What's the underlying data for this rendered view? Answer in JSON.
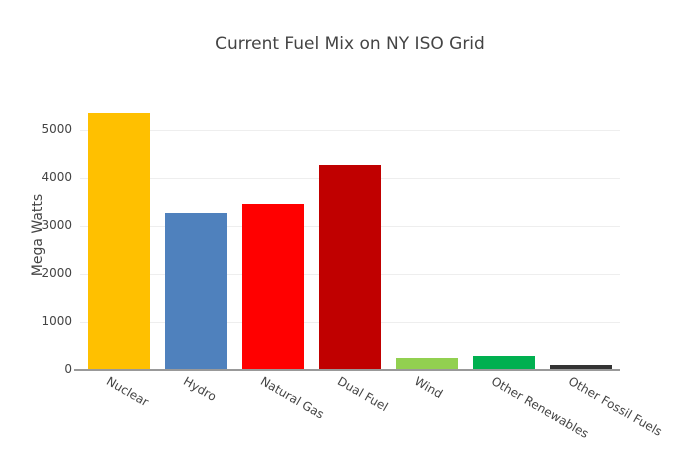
{
  "chart_data": {
    "type": "bar",
    "title": "Current Fuel Mix on NY ISO Grid",
    "xlabel": "",
    "ylabel": "Mega Watts",
    "categories": [
      "Nuclear",
      "Hydro",
      "Natural Gas",
      "Dual Fuel",
      "Wind",
      "Other Renewables",
      "Other Fossil Fuels"
    ],
    "values": [
      5355,
      3270,
      3460,
      4270,
      250,
      290,
      100
    ],
    "colors": [
      "#FFC000",
      "#4F81BD",
      "#FF0000",
      "#C00000",
      "#92D050",
      "#00B050",
      "#333333"
    ],
    "ylim": [
      0,
      6000
    ],
    "yticks": [
      0,
      1000,
      2000,
      3000,
      4000,
      5000
    ],
    "grid": true,
    "legend": false
  }
}
